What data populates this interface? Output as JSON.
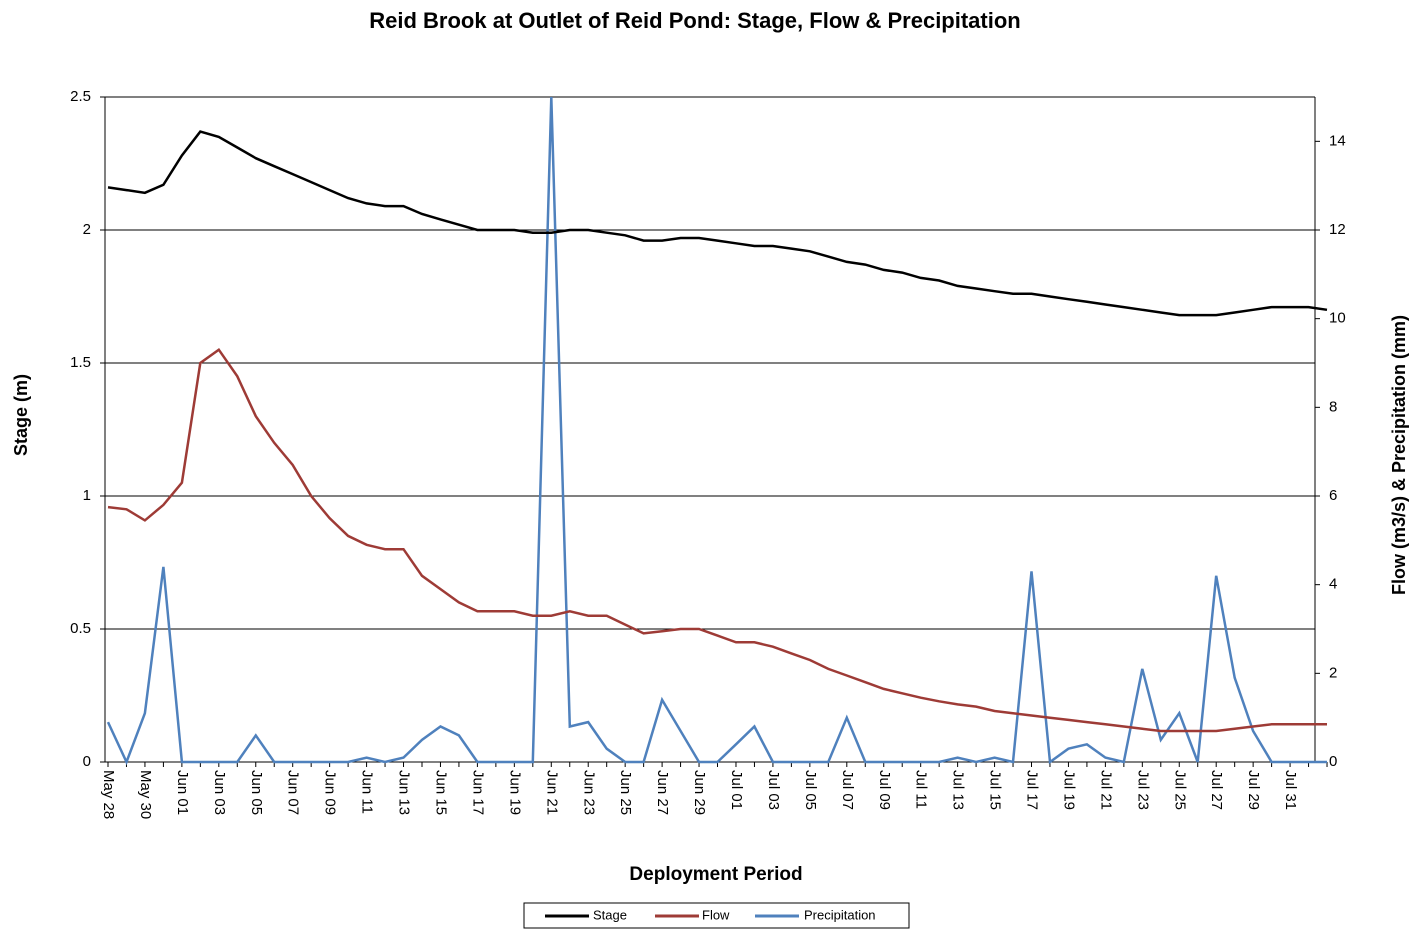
{
  "chart_data": {
    "type": "line",
    "title": "Reid Brook at Outlet of Reid Pond: Stage, Flow & Precipitation",
    "x_label": "Deployment Period",
    "y_label": "Stage (m)",
    "y2_label": "Flow (m3/s) & Precipitation (mm)",
    "categories": [
      "May 28",
      null,
      "May 30",
      null,
      "Jun 01",
      null,
      "Jun 03",
      null,
      "Jun 05",
      null,
      "Jun 07",
      null,
      "Jun 09",
      null,
      "Jun 11",
      null,
      "Jun 13",
      null,
      "Jun 15",
      null,
      "Jun 17",
      null,
      "Jun 19",
      null,
      "Jun 21",
      null,
      "Jun 23",
      null,
      "Jun 25",
      null,
      "Jun 27",
      null,
      "Jun 29",
      null,
      "Jul 01",
      null,
      "Jul 03",
      null,
      "Jul 05",
      null,
      "Jul 07",
      null,
      "Jul 09",
      null,
      "Jul 11",
      null,
      "Jul 13",
      null,
      "Jul 15",
      null,
      "Jul 17",
      null,
      "Jul 19",
      null,
      "Jul 21",
      null,
      "Jul 23",
      null,
      "Jul 25",
      null,
      "Jul 27",
      null,
      "Jul 29",
      null,
      "Jul 31",
      null,
      null
    ],
    "series": [
      {
        "name": "Stage",
        "color": "#000000",
        "axis": "y",
        "values": [
          2.16,
          2.15,
          2.14,
          2.17,
          2.28,
          2.37,
          2.35,
          2.31,
          2.27,
          2.24,
          2.21,
          2.18,
          2.15,
          2.12,
          2.1,
          2.09,
          2.09,
          2.06,
          2.04,
          2.02,
          2.0,
          2.0,
          2.0,
          1.99,
          1.99,
          2.0,
          2.0,
          1.99,
          1.98,
          1.96,
          1.96,
          1.97,
          1.97,
          1.96,
          1.95,
          1.94,
          1.94,
          1.93,
          1.92,
          1.9,
          1.88,
          1.87,
          1.85,
          1.84,
          1.82,
          1.81,
          1.79,
          1.78,
          1.77,
          1.76,
          1.76,
          1.75,
          1.74,
          1.73,
          1.72,
          1.71,
          1.7,
          1.69,
          1.68,
          1.68,
          1.68,
          1.69,
          1.7,
          1.71,
          1.71,
          1.71,
          1.7
        ]
      },
      {
        "name": "Flow",
        "color": "#9e3b36",
        "axis": "y2",
        "values": [
          5.75,
          5.7,
          5.45,
          5.8,
          6.3,
          9.0,
          9.3,
          8.7,
          7.8,
          7.2,
          6.7,
          6.0,
          5.5,
          5.1,
          4.9,
          4.8,
          4.8,
          4.2,
          3.9,
          3.6,
          3.4,
          3.4,
          3.4,
          3.3,
          3.3,
          3.4,
          3.3,
          3.3,
          3.1,
          2.9,
          2.95,
          3.0,
          3.0,
          2.85,
          2.7,
          2.7,
          2.6,
          2.45,
          2.3,
          2.1,
          1.95,
          1.8,
          1.65,
          1.55,
          1.45,
          1.37,
          1.3,
          1.25,
          1.15,
          1.1,
          1.05,
          1.0,
          0.95,
          0.9,
          0.85,
          0.8,
          0.75,
          0.7,
          0.7,
          0.7,
          0.7,
          0.75,
          0.8,
          0.85,
          0.85,
          0.85,
          0.85
        ]
      },
      {
        "name": "Precipitation",
        "color": "#4f81bd",
        "axis": "y2",
        "values": [
          0.9,
          0,
          1.1,
          4.4,
          0,
          0,
          0,
          0,
          0.6,
          0,
          0,
          0,
          0,
          0,
          0.1,
          0,
          0.1,
          0.5,
          0.8,
          0.6,
          0,
          0,
          0,
          0,
          15,
          0.8,
          0.9,
          0.3,
          0,
          0,
          1.4,
          0.7,
          0,
          0,
          0.4,
          0.8,
          0,
          0,
          0,
          0,
          1.0,
          0,
          0,
          0,
          0,
          0,
          0.1,
          0,
          0.1,
          0,
          4.3,
          0,
          0.3,
          0.4,
          0.1,
          0,
          2.1,
          0.5,
          1.1,
          0,
          4.2,
          1.9,
          0.7,
          0,
          0,
          0,
          0
        ]
      }
    ],
    "ylim": [
      0,
      2.5
    ],
    "yticks": [
      0,
      0.5,
      1,
      1.5,
      2,
      2.5
    ],
    "y2lim": [
      0,
      15
    ],
    "y2ticks": [
      0,
      2,
      4,
      6,
      8,
      10,
      12,
      14
    ],
    "grid": true,
    "legend": "bottom"
  }
}
